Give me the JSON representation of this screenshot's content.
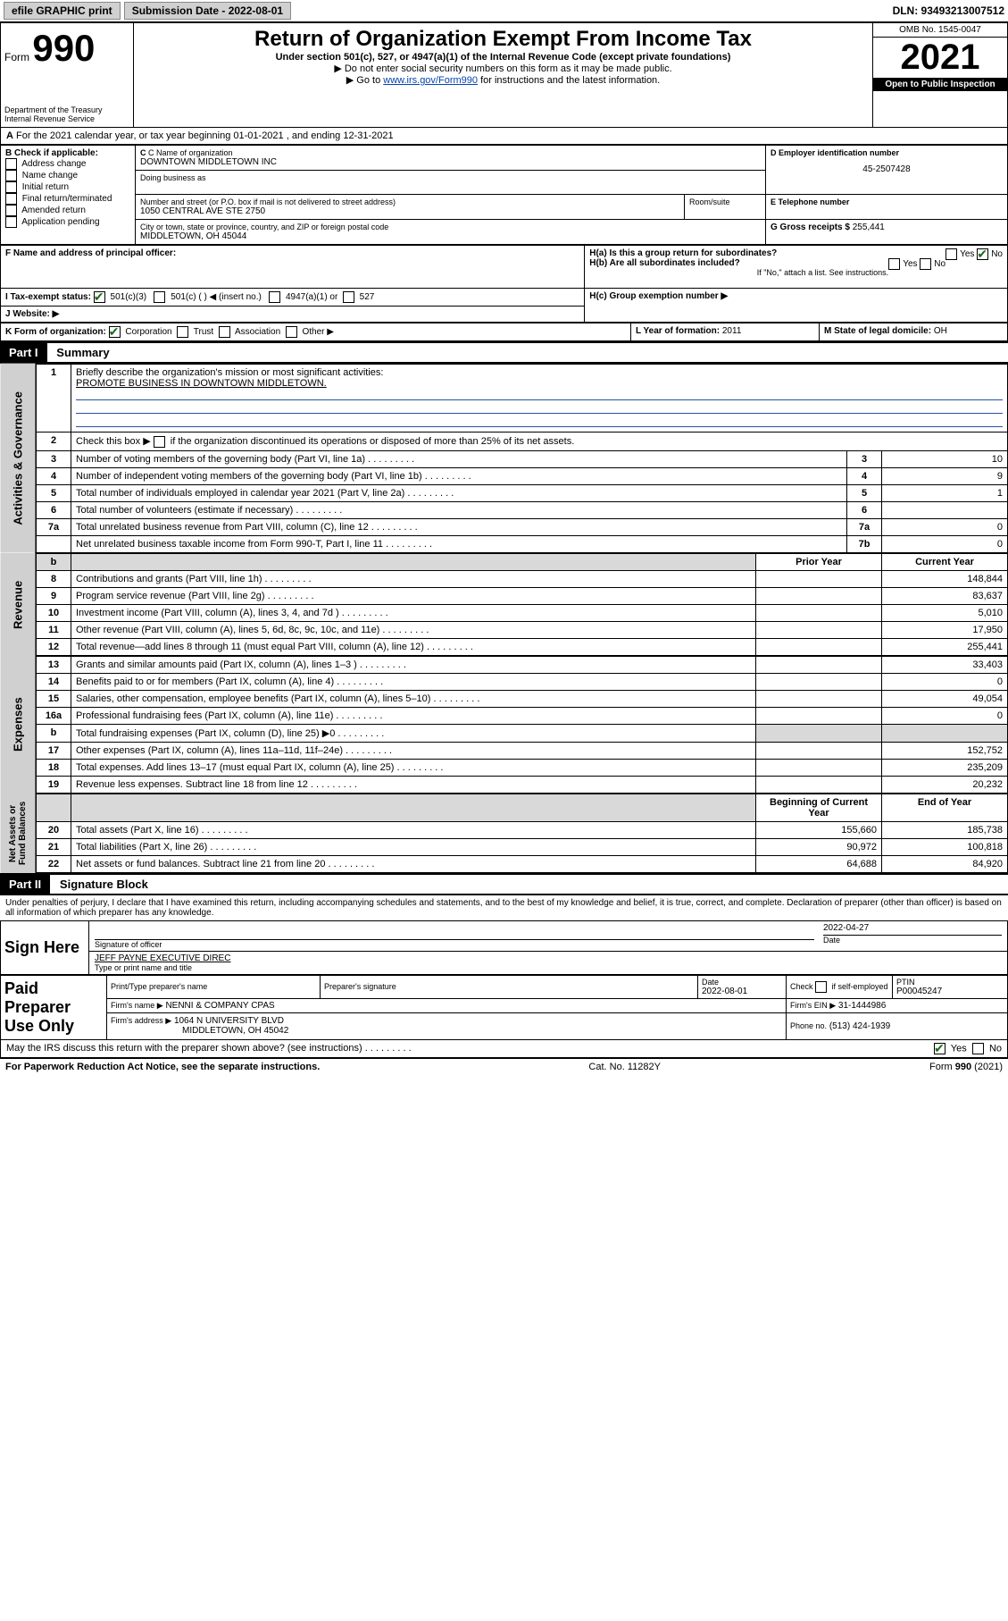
{
  "topbar": {
    "efile": "efile GRAPHIC print",
    "subdate_label": "Submission Date - 2022-08-01",
    "dln": "DLN: 93493213007512"
  },
  "header": {
    "form_label": "Form",
    "form_num": "990",
    "dept": "Department of the Treasury",
    "irs": "Internal Revenue Service",
    "title": "Return of Organization Exempt From Income Tax",
    "subtitle": "Under section 501(c), 527, or 4947(a)(1) of the Internal Revenue Code (except private foundations)",
    "note1": "▶ Do not enter social security numbers on this form as it may be made public.",
    "note2_pre": "▶ Go to ",
    "note2_link": "www.irs.gov/Form990",
    "note2_post": " for instructions and the latest information.",
    "omb": "OMB No. 1545-0047",
    "year": "2021",
    "open": "Open to Public Inspection"
  },
  "A": {
    "text": "For the 2021 calendar year, or tax year beginning 01-01-2021    , and ending 12-31-2021"
  },
  "B": {
    "label": "B Check if applicable:",
    "opts": [
      "Address change",
      "Name change",
      "Initial return",
      "Final return/terminated",
      "Amended return",
      "Application pending"
    ]
  },
  "C": {
    "name_label": "C Name of organization",
    "name": "DOWNTOWN MIDDLETOWN INC",
    "dba_label": "Doing business as",
    "addr_label": "Number and street (or P.O. box if mail is not delivered to street address)",
    "room_label": "Room/suite",
    "addr": "1050 CENTRAL AVE STE 2750",
    "city_label": "City or town, state or province, country, and ZIP or foreign postal code",
    "city": "MIDDLETOWN, OH  45044"
  },
  "D": {
    "label": "D Employer identification number",
    "val": "45-2507428"
  },
  "E": {
    "label": "E Telephone number",
    "val": ""
  },
  "G": {
    "label": "G Gross receipts $",
    "val": "255,441"
  },
  "F": {
    "label": "F  Name and address of principal officer:"
  },
  "H": {
    "a": "H(a)  Is this a group return for subordinates?",
    "b": "H(b)  Are all subordinates included?",
    "bno": "If \"No,\" attach a list. See instructions.",
    "c": "H(c)  Group exemption number ▶",
    "yes": "Yes",
    "no": "No"
  },
  "I": {
    "label": "I   Tax-exempt status:",
    "c3": "501(c)(3)",
    "c": "501(c) (  ) ◀ (insert no.)",
    "a1": "4947(a)(1) or",
    "s527": "527"
  },
  "J": {
    "label": "J   Website: ▶"
  },
  "K": {
    "label": "K Form of organization:",
    "corp": "Corporation",
    "trust": "Trust",
    "assoc": "Association",
    "other": "Other ▶"
  },
  "L": {
    "label": "L Year of formation:",
    "val": "2011"
  },
  "M": {
    "label": "M State of legal domicile:",
    "val": "OH"
  },
  "part1": {
    "hdr": "Part I",
    "title": "Summary",
    "l1_label": "Briefly describe the organization's mission or most significant activities:",
    "l1_text": "PROMOTE BUSINESS IN DOWNTOWN MIDDLETOWN.",
    "l2": "Check this box ▶       if the organization discontinued its operations or disposed of more than 25% of its net assets.",
    "rows_gov": [
      {
        "n": "3",
        "d": "Number of voting members of the governing body (Part VI, line 1a)",
        "b": "3",
        "v": "10"
      },
      {
        "n": "4",
        "d": "Number of independent voting members of the governing body (Part VI, line 1b)",
        "b": "4",
        "v": "9"
      },
      {
        "n": "5",
        "d": "Total number of individuals employed in calendar year 2021 (Part V, line 2a)",
        "b": "5",
        "v": "1"
      },
      {
        "n": "6",
        "d": "Total number of volunteers (estimate if necessary)",
        "b": "6",
        "v": ""
      },
      {
        "n": "7a",
        "d": "Total unrelated business revenue from Part VIII, column (C), line 12",
        "b": "7a",
        "v": "0"
      },
      {
        "n": "",
        "d": "Net unrelated business taxable income from Form 990-T, Part I, line 11",
        "b": "7b",
        "v": "0"
      }
    ],
    "col_prior": "Prior Year",
    "col_curr": "Current Year",
    "rows_rev": [
      {
        "n": "8",
        "d": "Contributions and grants (Part VIII, line 1h)",
        "p": "",
        "c": "148,844"
      },
      {
        "n": "9",
        "d": "Program service revenue (Part VIII, line 2g)",
        "p": "",
        "c": "83,637"
      },
      {
        "n": "10",
        "d": "Investment income (Part VIII, column (A), lines 3, 4, and 7d )",
        "p": "",
        "c": "5,010"
      },
      {
        "n": "11",
        "d": "Other revenue (Part VIII, column (A), lines 5, 6d, 8c, 9c, 10c, and 11e)",
        "p": "",
        "c": "17,950"
      },
      {
        "n": "12",
        "d": "Total revenue—add lines 8 through 11 (must equal Part VIII, column (A), line 12)",
        "p": "",
        "c": "255,441"
      }
    ],
    "rows_exp": [
      {
        "n": "13",
        "d": "Grants and similar amounts paid (Part IX, column (A), lines 1–3 )",
        "p": "",
        "c": "33,403"
      },
      {
        "n": "14",
        "d": "Benefits paid to or for members (Part IX, column (A), line 4)",
        "p": "",
        "c": "0"
      },
      {
        "n": "15",
        "d": "Salaries, other compensation, employee benefits (Part IX, column (A), lines 5–10)",
        "p": "",
        "c": "49,054"
      },
      {
        "n": "16a",
        "d": "Professional fundraising fees (Part IX, column (A), line 11e)",
        "p": "",
        "c": "0"
      },
      {
        "n": "b",
        "d": "Total fundraising expenses (Part IX, column (D), line 25) ▶0",
        "p": "shade",
        "c": "shade"
      },
      {
        "n": "17",
        "d": "Other expenses (Part IX, column (A), lines 11a–11d, 11f–24e)",
        "p": "",
        "c": "152,752"
      },
      {
        "n": "18",
        "d": "Total expenses. Add lines 13–17 (must equal Part IX, column (A), line 25)",
        "p": "",
        "c": "235,209"
      },
      {
        "n": "19",
        "d": "Revenue less expenses. Subtract line 18 from line 12",
        "p": "",
        "c": "20,232"
      }
    ],
    "col_beg": "Beginning of Current Year",
    "col_end": "End of Year",
    "rows_net": [
      {
        "n": "20",
        "d": "Total assets (Part X, line 16)",
        "p": "155,660",
        "c": "185,738"
      },
      {
        "n": "21",
        "d": "Total liabilities (Part X, line 26)",
        "p": "90,972",
        "c": "100,818"
      },
      {
        "n": "22",
        "d": "Net assets or fund balances. Subtract line 21 from line 20",
        "p": "64,688",
        "c": "84,920"
      }
    ]
  },
  "part2": {
    "hdr": "Part II",
    "title": "Signature Block",
    "decl": "Under penalties of perjury, I declare that I have examined this return, including accompanying schedules and statements, and to the best of my knowledge and belief, it is true, correct, and complete. Declaration of preparer (other than officer) is based on all information of which preparer has any knowledge.",
    "sign_here": "Sign Here",
    "sig_officer": "Signature of officer",
    "sig_date_label": "Date",
    "sig_date": "2022-04-27",
    "officer_name": "JEFF PAYNE  EXECUTIVE DIREC",
    "officer_label": "Type or print name and title",
    "paid": "Paid Preparer Use Only",
    "prep_name_label": "Print/Type preparer's name",
    "prep_sig_label": "Preparer's signature",
    "prep_date_label": "Date",
    "prep_date": "2022-08-01",
    "self_label": "Check        if self-employed",
    "ptin_label": "PTIN",
    "ptin": "P00045247",
    "firm_name_label": "Firm's name    ▶",
    "firm_name": "NENNI & COMPANY CPAS",
    "firm_ein_label": "Firm's EIN ▶",
    "firm_ein": "31-1444986",
    "firm_addr_label": "Firm's address ▶",
    "firm_addr1": "1064 N UNIVERSITY BLVD",
    "firm_addr2": "MIDDLETOWN, OH  45042",
    "phone_label": "Phone no.",
    "phone": "(513) 424-1939",
    "discuss": "May the IRS discuss this return with the preparer shown above? (see instructions)",
    "yes": "Yes",
    "no": "No"
  },
  "footer": {
    "pra": "For Paperwork Reduction Act Notice, see the separate instructions.",
    "cat": "Cat. No. 11282Y",
    "form": "Form 990 (2021)"
  }
}
